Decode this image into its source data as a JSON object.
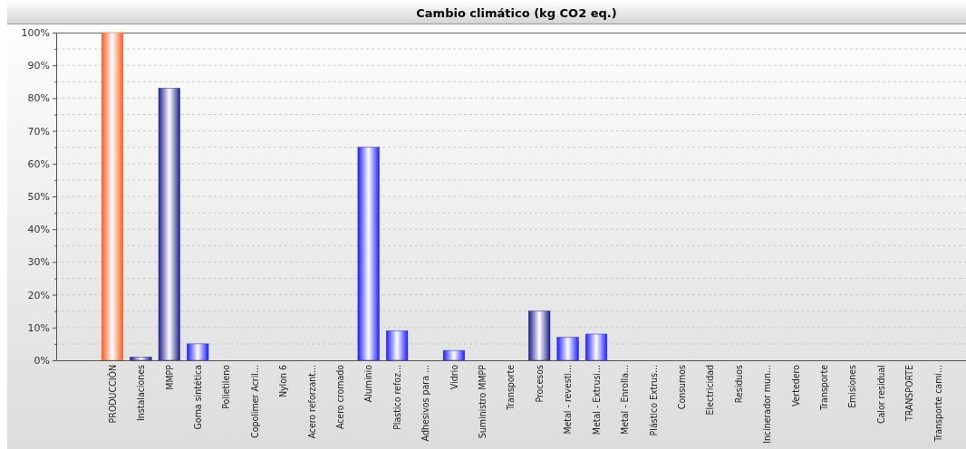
{
  "chart_data": {
    "type": "bar",
    "title": "Cambio climático (kg CO2 eq.)",
    "categories": [
      "PRODUCCIÓN",
      "Instalaciones",
      "MMPP",
      "Goma sintética",
      "Polietileno",
      "Copolimer Acril...",
      "Nylon 6",
      "Acero reforzant...",
      "Acero cromado",
      "Aluminio",
      "Plastico refoz...",
      "Adhesivos para ...",
      "Vidrio",
      "Suministro MMPP",
      "Transporte",
      "Procesos",
      "Metal - revesti...",
      "Metal - Extrusi...",
      "Metal - Enrolla...",
      "Plástico Extrus...",
      "Consumos",
      "Electricidad",
      "Residuos",
      "Incinerador mun...",
      "Vertedero",
      "Transporte",
      "Emisiones",
      "Calor residual",
      "TRANSPORTE",
      "Transporte cami..."
    ],
    "values": [
      100,
      1,
      83,
      5,
      0,
      0,
      0,
      0,
      0,
      65,
      9,
      0,
      3,
      0,
      0,
      15,
      7,
      8,
      0,
      0,
      0,
      0,
      0,
      0,
      0,
      0,
      0,
      0,
      0,
      0
    ],
    "colors": [
      "#ff5a1e",
      "#1e1e8c",
      "#1e1e8c",
      "#1e1eff",
      "#1e1eff",
      "#1e1eff",
      "#1e1eff",
      "#1e1eff",
      "#1e1eff",
      "#1e1eff",
      "#1e1eff",
      "#1e1eff",
      "#1e1eff",
      "#1e1eff",
      "#1e1eff",
      "#1e1e8c",
      "#1e1eff",
      "#1e1eff",
      "#1e1eff",
      "#1e1eff",
      "#1e1eff",
      "#1e1eff",
      "#1e1eff",
      "#1e1eff",
      "#1e1eff",
      "#1e1eff",
      "#1e1eff",
      "#1e1eff",
      "#1e1eff",
      "#1e1eff"
    ],
    "ylim": [
      0,
      100
    ],
    "yticks": [
      {
        "value": 0,
        "label": "0%"
      },
      {
        "value": 5,
        "label": null
      },
      {
        "value": 10,
        "label": "10%"
      },
      {
        "value": 15,
        "label": null
      },
      {
        "value": 20,
        "label": "20%"
      },
      {
        "value": 25,
        "label": null
      },
      {
        "value": 30,
        "label": "30%"
      },
      {
        "value": 35,
        "label": null
      },
      {
        "value": 40,
        "label": "40%"
      },
      {
        "value": 45,
        "label": null
      },
      {
        "value": 50,
        "label": "50%"
      },
      {
        "value": 55,
        "label": null
      },
      {
        "value": 60,
        "label": "60%"
      },
      {
        "value": 65,
        "label": null
      },
      {
        "value": 70,
        "label": "70%"
      },
      {
        "value": 75,
        "label": null
      },
      {
        "value": 80,
        "label": "80%"
      },
      {
        "value": 85,
        "label": null
      },
      {
        "value": 90,
        "label": "90%"
      },
      {
        "value": 95,
        "label": null
      },
      {
        "value": 100,
        "label": "100%"
      }
    ],
    "grid": "y"
  }
}
